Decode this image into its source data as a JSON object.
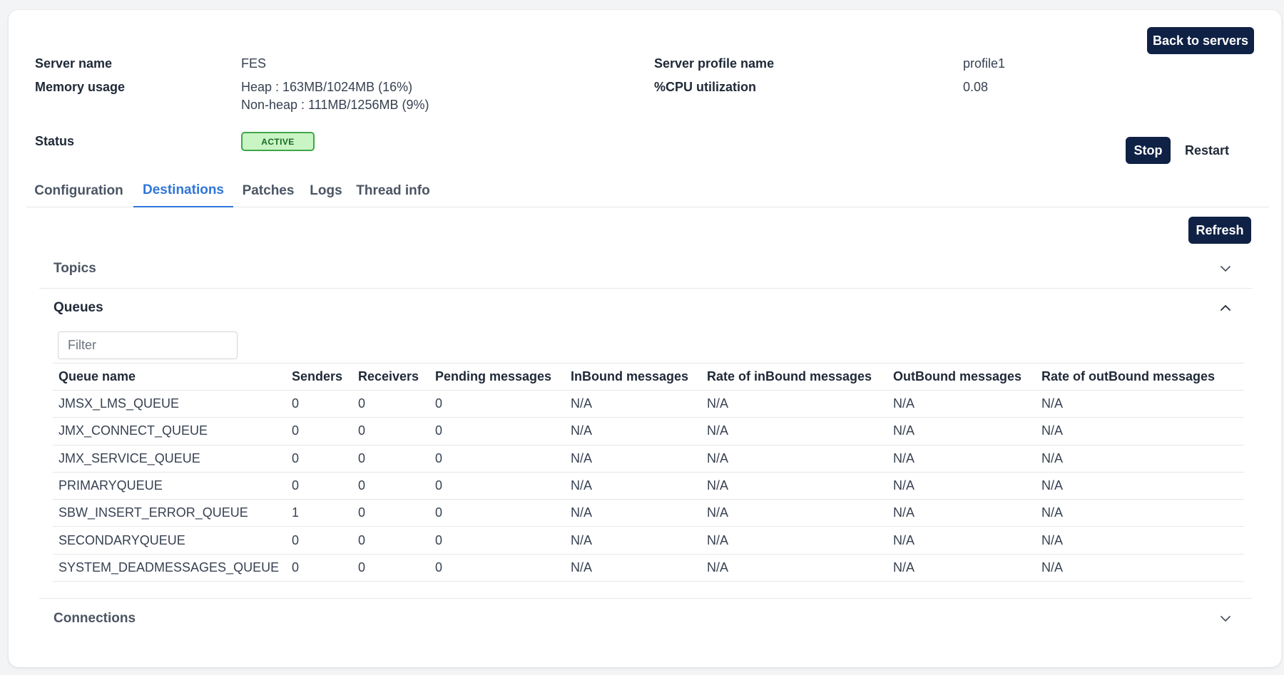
{
  "server": {
    "name_label": "Server name",
    "name_value": "FES",
    "memory_label": "Memory usage",
    "memory_heap": "Heap : 163MB/1024MB (16%)",
    "memory_nonheap": "Non-heap : 111MB/1256MB (9%)",
    "profile_label": "Server profile name",
    "profile_value": "profile1",
    "cpu_label": "%CPU utilization",
    "cpu_value": "0.08",
    "status_label": "Status",
    "status_value": "ACTIVE"
  },
  "actions": {
    "back": "Back to servers",
    "stop": "Stop",
    "restart": "Restart",
    "refresh": "Refresh"
  },
  "tabs": [
    {
      "label": "Configuration"
    },
    {
      "label": "Destinations",
      "active": true
    },
    {
      "label": "Patches"
    },
    {
      "label": "Logs"
    },
    {
      "label": "Thread info"
    }
  ],
  "sections": {
    "topics": "Topics",
    "queues": "Queues",
    "connections": "Connections"
  },
  "filter": {
    "placeholder": "Filter",
    "value": ""
  },
  "queues_table": {
    "columns": [
      "Queue name",
      "Senders",
      "Receivers",
      "Pending messages",
      "InBound messages",
      "Rate of inBound messages",
      "OutBound messages",
      "Rate of outBound messages"
    ],
    "rows": [
      [
        "JMSX_LMS_QUEUE",
        "0",
        "0",
        "0",
        "N/A",
        "N/A",
        "N/A",
        "N/A"
      ],
      [
        "JMX_CONNECT_QUEUE",
        "0",
        "0",
        "0",
        "N/A",
        "N/A",
        "N/A",
        "N/A"
      ],
      [
        "JMX_SERVICE_QUEUE",
        "0",
        "0",
        "0",
        "N/A",
        "N/A",
        "N/A",
        "N/A"
      ],
      [
        "PRIMARYQUEUE",
        "0",
        "0",
        "0",
        "N/A",
        "N/A",
        "N/A",
        "N/A"
      ],
      [
        "SBW_INSERT_ERROR_QUEUE",
        "1",
        "0",
        "0",
        "N/A",
        "N/A",
        "N/A",
        "N/A"
      ],
      [
        "SECONDARYQUEUE",
        "0",
        "0",
        "0",
        "N/A",
        "N/A",
        "N/A",
        "N/A"
      ],
      [
        "SYSTEM_DEADMESSAGES_QUEUE",
        "0",
        "0",
        "0",
        "N/A",
        "N/A",
        "N/A",
        "N/A"
      ]
    ]
  },
  "colors": {
    "primary_button": "#0f2145",
    "active_tab": "#2f76d8",
    "status_badge_bg": "#c9f5c4",
    "status_badge_border": "#3fa64a"
  }
}
